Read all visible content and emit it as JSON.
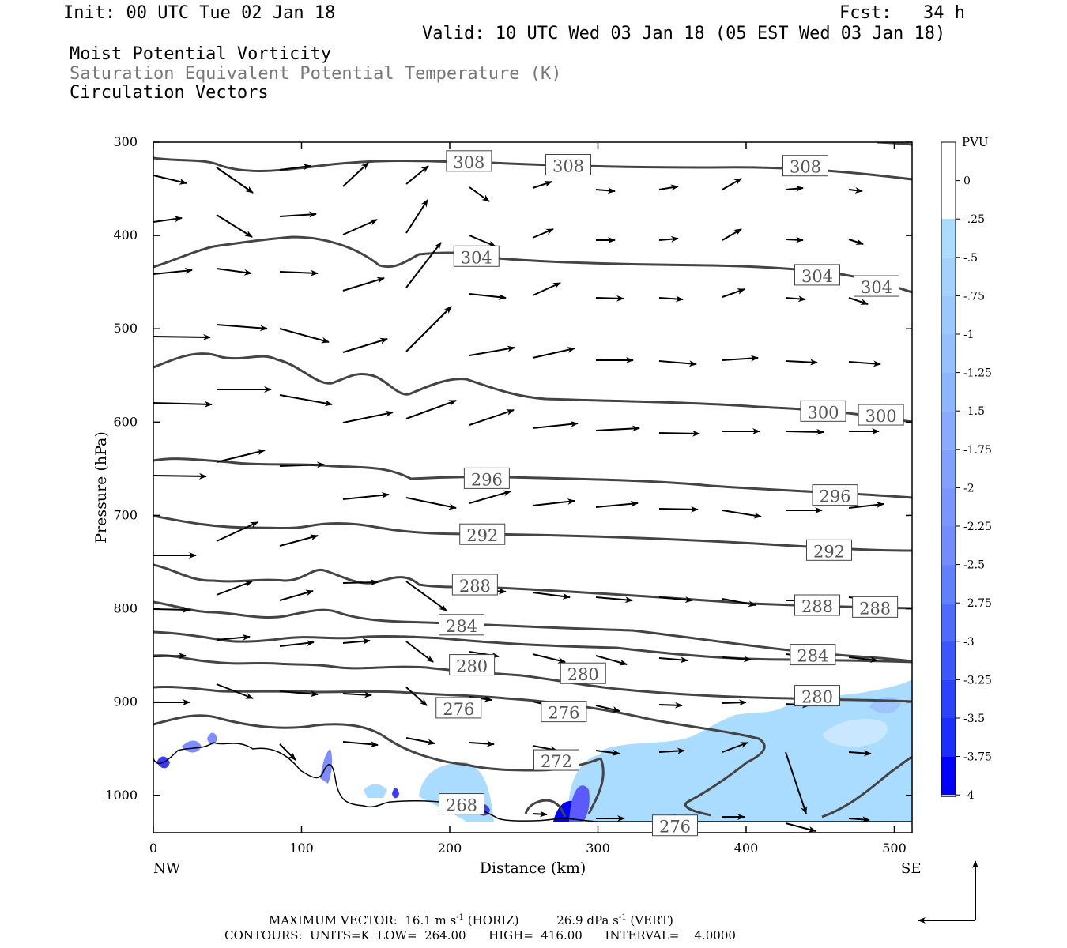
{
  "header": {
    "init": "Init: 00 UTC Tue 02 Jan 18",
    "fcst": "Fcst:   34 h",
    "valid": "Valid: 10 UTC Wed 03 Jan 18 (05 EST Wed 03 Jan 18)",
    "fields": [
      "Moist Potential Vorticity",
      "Saturation Equivalent Potential Temperature (K)",
      "Circulation Vectors"
    ]
  },
  "footer": {
    "maxvec_label": "MAXIMUM VECTOR:",
    "horiz_val": "16.1 m s",
    "horiz_unit": "(HORIZ)",
    "vert_val": "26.9 dPa s",
    "vert_unit": "(VERT)",
    "exp": "-1",
    "contours": "CONTOURS:  UNITS=K  LOW=  264.00      HIGH=  416.00      INTERVAL=    4.0000"
  },
  "colors": {
    "contour": "#444444",
    "mpv_light": "#aadcff",
    "mpv_mid": "#7d8cff",
    "mpv_dark": "#0000ff",
    "vector": "#000000"
  },
  "chart_data": {
    "type": "cross-section",
    "xlabel": "Distance (km)",
    "ylabel": "Pressure (hPa)",
    "x_range": [
      0,
      512
    ],
    "y_range": [
      300,
      1040
    ],
    "y_inverted": true,
    "x_ticks": [
      "0",
      "100",
      "200",
      "300",
      "400",
      "500"
    ],
    "x_end_labels": {
      "left": "NW",
      "right": "SE"
    },
    "y_ticks": [
      "300",
      "400",
      "500",
      "600",
      "700",
      "800",
      "900",
      "1000"
    ],
    "colorbar": {
      "unit": "PVU",
      "ticks": [
        "0",
        "-.25",
        "-.5",
        "-.75",
        "-1",
        "-1.25",
        "-1.5",
        "-1.75",
        "-2",
        "-2.25",
        "-2.5",
        "-2.75",
        "-3",
        "-3.25",
        "-3.5",
        "-3.75",
        "-4"
      ]
    },
    "contour_labels": [
      {
        "text": "308",
        "x": 213,
        "p": 321
      },
      {
        "text": "308",
        "x": 280,
        "p": 325
      },
      {
        "text": "308",
        "x": 440,
        "p": 326
      },
      {
        "text": "304",
        "x": 218,
        "p": 423
      },
      {
        "text": "304",
        "x": 448,
        "p": 443
      },
      {
        "text": "304",
        "x": 488,
        "p": 455
      },
      {
        "text": "300",
        "x": 452,
        "p": 589
      },
      {
        "text": "300",
        "x": 491,
        "p": 593
      },
      {
        "text": "296",
        "x": 225,
        "p": 661
      },
      {
        "text": "296",
        "x": 460,
        "p": 679
      },
      {
        "text": "292",
        "x": 222,
        "p": 721
      },
      {
        "text": "292",
        "x": 456,
        "p": 738
      },
      {
        "text": "288",
        "x": 217,
        "p": 775
      },
      {
        "text": "288",
        "x": 448,
        "p": 797
      },
      {
        "text": "288",
        "x": 487,
        "p": 799
      },
      {
        "text": "284",
        "x": 208,
        "p": 818
      },
      {
        "text": "284",
        "x": 445,
        "p": 850
      },
      {
        "text": "280",
        "x": 215,
        "p": 861
      },
      {
        "text": "280",
        "x": 290,
        "p": 870
      },
      {
        "text": "280",
        "x": 448,
        "p": 894
      },
      {
        "text": "276",
        "x": 206,
        "p": 907
      },
      {
        "text": "276",
        "x": 277,
        "p": 911
      },
      {
        "text": "272",
        "x": 272,
        "p": 963
      },
      {
        "text": "268",
        "x": 208,
        "p": 1010
      },
      {
        "text": "276",
        "x": 352,
        "p": 1033
      }
    ]
  }
}
